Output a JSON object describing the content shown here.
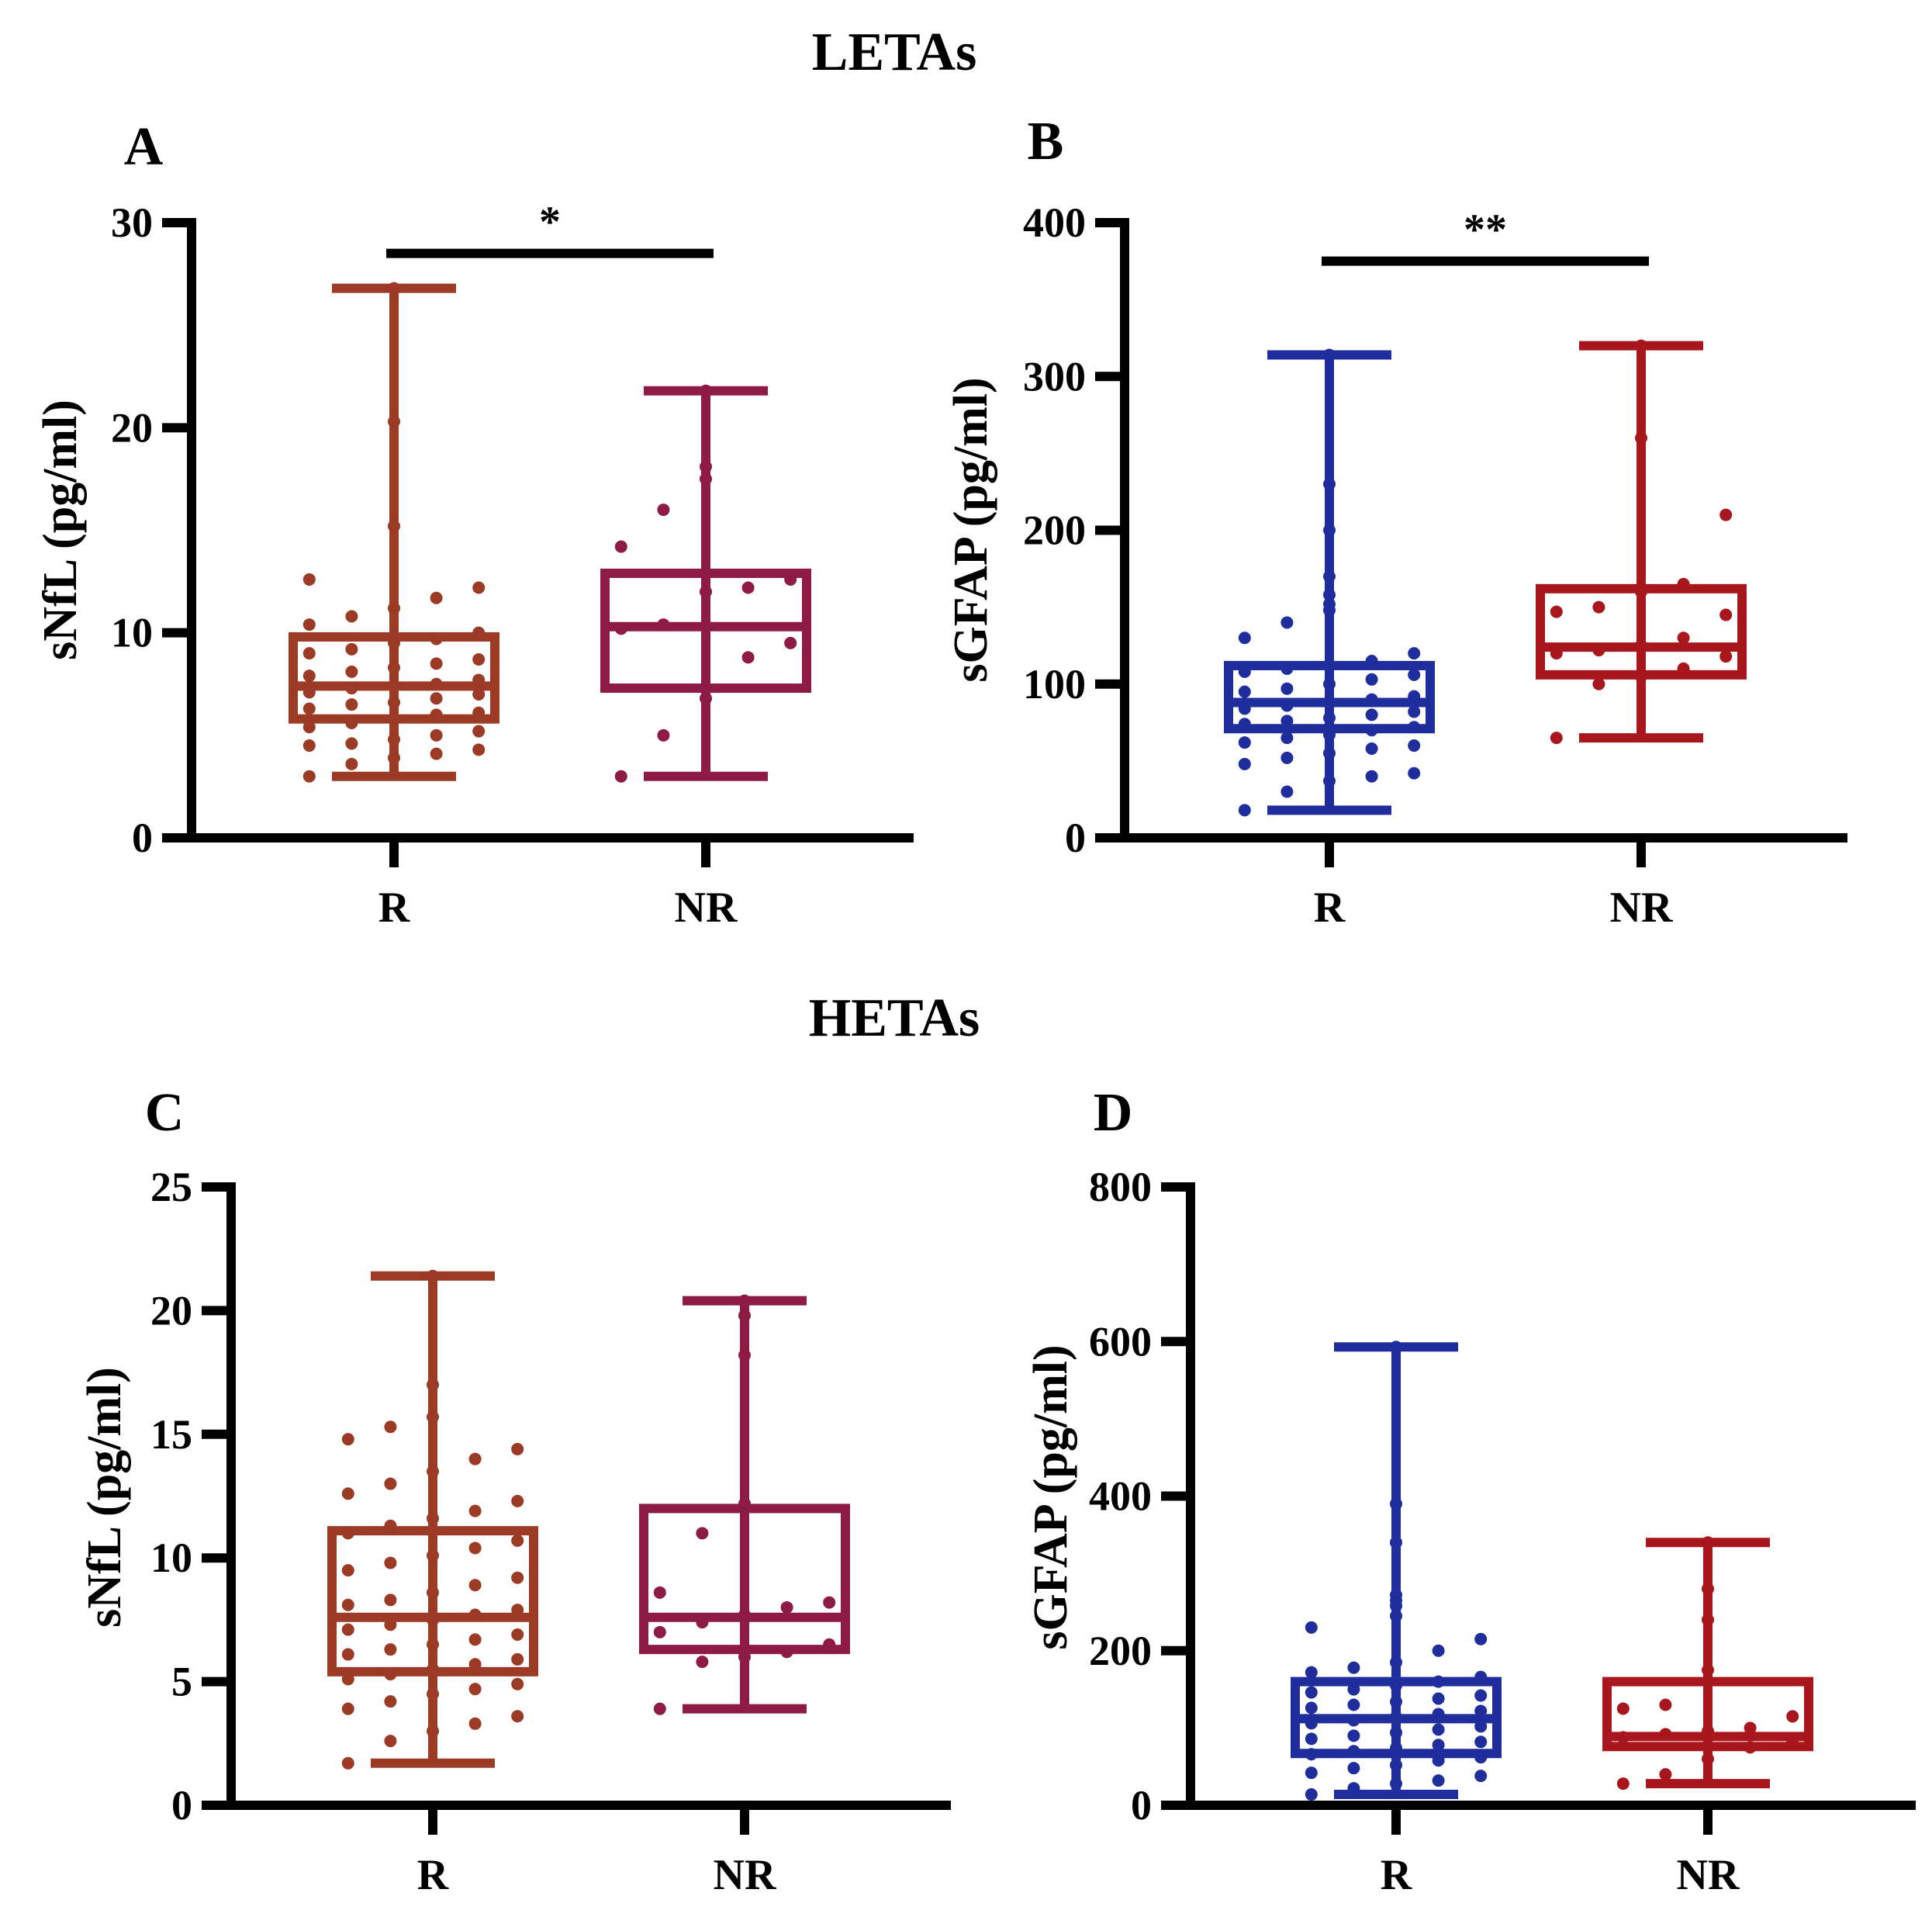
{
  "sections": {
    "top": "LETAs",
    "bottom": "HETAs"
  },
  "colors": {
    "brown": "#9B3A25",
    "maroon": "#8E1B45",
    "blue": "#1F2E9C",
    "red": "#A8171E",
    "axis": "#000000"
  },
  "chart_data": [
    {
      "panel": "A",
      "type": "box",
      "section": "LETAs",
      "ylabel": "sNfL (pg/ml)",
      "ylim": [
        0,
        30
      ],
      "yticks": [
        0,
        10,
        20,
        30
      ],
      "categories": [
        "R",
        "NR"
      ],
      "significance": {
        "from": "R",
        "to": "NR",
        "label": "*",
        "y": 28.5
      },
      "groups": [
        {
          "name": "R",
          "color": "brown",
          "min": 3.0,
          "q1": 5.8,
          "median": 7.4,
          "q3": 9.8,
          "max": 26.8,
          "points": [
            3.0,
            3.6,
            3.9,
            4.1,
            4.3,
            4.5,
            4.6,
            4.8,
            5.0,
            5.2,
            5.4,
            5.6,
            5.8,
            6.0,
            6.1,
            6.3,
            6.5,
            6.6,
            6.8,
            7.0,
            7.1,
            7.3,
            7.4,
            7.5,
            7.7,
            7.9,
            8.1,
            8.3,
            8.5,
            8.7,
            9.0,
            9.2,
            9.5,
            9.7,
            10.0,
            10.4,
            10.8,
            11.2,
            11.7,
            12.2,
            12.6,
            15.2,
            20.3,
            26.8
          ]
        },
        {
          "name": "NR",
          "color": "maroon",
          "min": 3.0,
          "q1": 7.3,
          "median": 10.3,
          "q3": 12.9,
          "max": 21.8,
          "points": [
            3.0,
            5.0,
            6.8,
            8.8,
            9.5,
            10.2,
            10.4,
            12.0,
            12.2,
            12.6,
            14.2,
            16.0,
            17.5,
            18.1,
            21.8
          ]
        }
      ]
    },
    {
      "panel": "B",
      "type": "box",
      "section": "LETAs",
      "ylabel": "sGFAP (pg/ml)",
      "ylim": [
        0,
        400
      ],
      "yticks": [
        0,
        100,
        200,
        300,
        400
      ],
      "categories": [
        "R",
        "NR"
      ],
      "significance": {
        "from": "R",
        "to": "NR",
        "label": "**",
        "y": 375
      },
      "groups": [
        {
          "name": "R",
          "color": "blue",
          "min": 18,
          "q1": 71,
          "median": 88,
          "q3": 112,
          "max": 314,
          "points": [
            18,
            30,
            37,
            40,
            42,
            48,
            52,
            55,
            58,
            60,
            62,
            65,
            67,
            70,
            72,
            74,
            76,
            78,
            80,
            82,
            84,
            86,
            88,
            90,
            92,
            95,
            97,
            100,
            103,
            106,
            108,
            110,
            112,
            115,
            120,
            130,
            140,
            148,
            152,
            158,
            170,
            200,
            230,
            314
          ]
        },
        {
          "name": "NR",
          "color": "red",
          "min": 65,
          "q1": 106,
          "median": 124,
          "q3": 162,
          "max": 320,
          "points": [
            65,
            100,
            105,
            110,
            118,
            120,
            122,
            125,
            130,
            145,
            147,
            150,
            160,
            165,
            210,
            260,
            320
          ]
        }
      ]
    },
    {
      "panel": "C",
      "type": "box",
      "section": "HETAs",
      "ylabel": "sNfL (pg/ml)",
      "ylim": [
        0,
        25
      ],
      "yticks": [
        0,
        5,
        10,
        15,
        20,
        25
      ],
      "categories": [
        "R",
        "NR"
      ],
      "groups": [
        {
          "name": "R",
          "color": "brown",
          "min": 1.7,
          "q1": 5.4,
          "median": 7.6,
          "q3": 11.1,
          "max": 21.4,
          "points": [
            1.7,
            2.6,
            3.0,
            3.3,
            3.6,
            3.9,
            4.2,
            4.5,
            4.7,
            4.9,
            5.1,
            5.3,
            5.5,
            5.7,
            5.9,
            6.1,
            6.3,
            6.5,
            6.7,
            6.9,
            7.1,
            7.3,
            7.5,
            7.7,
            7.9,
            8.1,
            8.3,
            8.6,
            8.9,
            9.2,
            9.5,
            9.8,
            10.1,
            10.4,
            10.7,
            11.0,
            11.3,
            11.6,
            11.9,
            12.3,
            12.6,
            13.0,
            13.5,
            14.0,
            14.4,
            14.8,
            15.3,
            15.7,
            17.0,
            21.4
          ]
        },
        {
          "name": "NR",
          "color": "maroon",
          "min": 3.9,
          "q1": 6.3,
          "median": 7.6,
          "q3": 12.0,
          "max": 20.4,
          "points": [
            3.9,
            5.8,
            6.0,
            6.2,
            6.5,
            7.0,
            7.4,
            7.7,
            8.0,
            8.2,
            8.6,
            11.0,
            12.2,
            18.2,
            19.8,
            20.4
          ]
        }
      ]
    },
    {
      "panel": "D",
      "type": "box",
      "section": "HETAs",
      "ylabel": "sGFAP (pg/ml)",
      "ylim": [
        0,
        800
      ],
      "yticks": [
        0,
        200,
        400,
        600,
        800
      ],
      "categories": [
        "R",
        "NR"
      ],
      "groups": [
        {
          "name": "R",
          "color": "blue",
          "min": 14,
          "q1": 67,
          "median": 112,
          "q3": 160,
          "max": 593,
          "points": [
            14,
            22,
            28,
            32,
            38,
            42,
            48,
            52,
            58,
            62,
            66,
            70,
            74,
            78,
            82,
            86,
            90,
            94,
            98,
            102,
            106,
            110,
            114,
            118,
            122,
            126,
            130,
            134,
            138,
            142,
            146,
            150,
            155,
            160,
            166,
            172,
            178,
            185,
            200,
            215,
            230,
            245,
            258,
            265,
            272,
            340,
            390,
            593
          ]
        },
        {
          "name": "NR",
          "color": "red",
          "min": 28,
          "q1": 76,
          "median": 89,
          "q3": 160,
          "max": 340,
          "points": [
            28,
            40,
            60,
            75,
            82,
            88,
            92,
            96,
            100,
            115,
            125,
            130,
            175,
            240,
            280,
            340
          ]
        }
      ]
    }
  ]
}
